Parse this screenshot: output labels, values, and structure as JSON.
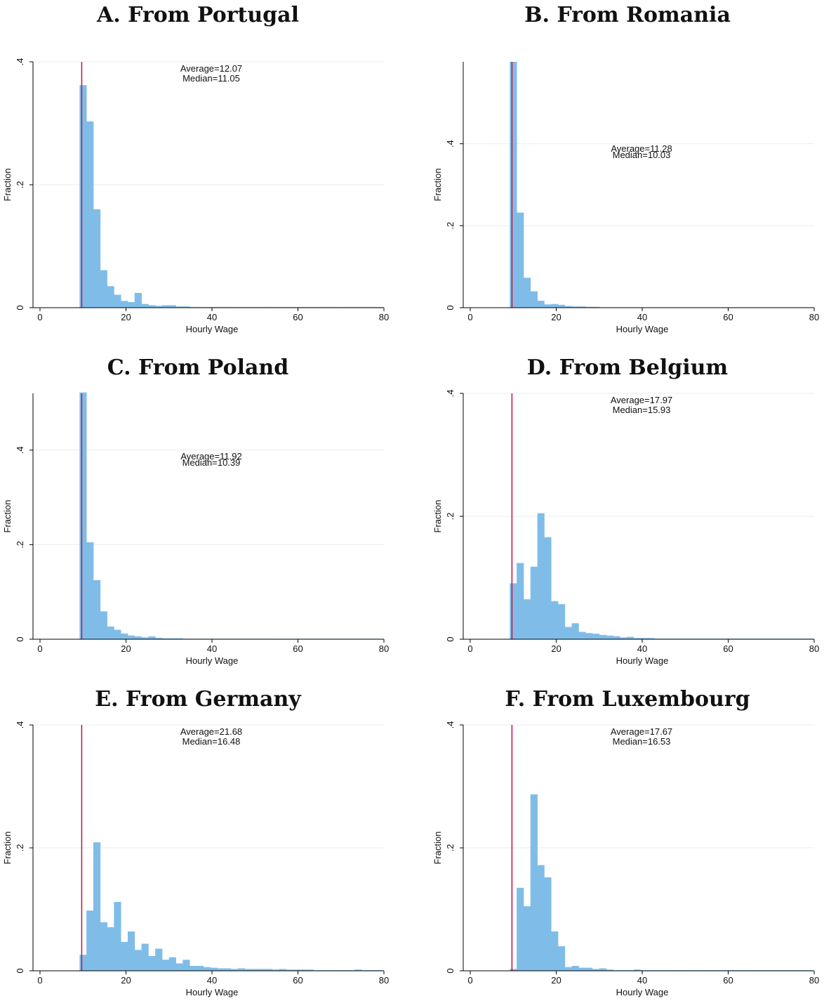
{
  "colors": {
    "bar": "#7fbde8",
    "min_wage_line": "#c8103e",
    "grid": "#e7eef3",
    "axis": "#000000"
  },
  "chart_data": [
    {
      "type": "bar",
      "title": "A. From Portugal",
      "xlabel": "Hourly Wage",
      "ylabel": "Fraction",
      "xlim": [
        0,
        80
      ],
      "ylim": [
        0,
        0.4
      ],
      "xticks": [
        0,
        20,
        40,
        60,
        80
      ],
      "xtick_labels": [
        "0",
        "20",
        "40",
        "60",
        "80"
      ],
      "yticks": [
        0,
        0.2,
        0.4
      ],
      "ytick_labels": [
        "0",
        ".2",
        ".4"
      ],
      "grid": true,
      "bin_start": 9.2,
      "bin_width": 1.6,
      "values": [
        0.362,
        0.303,
        0.16,
        0.061,
        0.035,
        0.021,
        0.011,
        0.009,
        0.024,
        0.006,
        0.004,
        0.003,
        0.004,
        0.004,
        0.002,
        0.002,
        0.001,
        0.001,
        0.001,
        0.001,
        0.001,
        0.001,
        0.001,
        0.001,
        0.001,
        0.001,
        0.001,
        0.001,
        0.001,
        0.001,
        0.001,
        0.001,
        0.001,
        0.001,
        0.001,
        0.001,
        0.001,
        0.001,
        0.001,
        0.001,
        0.001,
        0.001,
        0.001,
        0.001
      ],
      "min_wage": 9.7,
      "annotations": [
        "Average=12.07",
        "Median=11.05"
      ]
    },
    {
      "type": "bar",
      "title": "B. From Romania",
      "xlabel": "Hourly Wage",
      "ylabel": "Fraction",
      "xlim": [
        0,
        80
      ],
      "ylim": [
        0,
        0.6
      ],
      "xticks": [
        0,
        20,
        40,
        60,
        80
      ],
      "xtick_labels": [
        "0",
        "20",
        "40",
        "60",
        "80"
      ],
      "yticks": [
        0,
        0.2,
        0.4
      ],
      "ytick_labels": [
        "0",
        ".2",
        ".4"
      ],
      "grid": true,
      "bin_start": 9.2,
      "bin_width": 1.6,
      "values": [
        0.6,
        0.232,
        0.073,
        0.04,
        0.017,
        0.008,
        0.009,
        0.007,
        0.004,
        0.003,
        0.003,
        0.002,
        0.002,
        0.001,
        0.001,
        0.001,
        0.001,
        0.001,
        0.001,
        0.001,
        0.001,
        0.001,
        0.001,
        0.001,
        0.001,
        0.001,
        0.001,
        0.001,
        0.001,
        0.001,
        0.001,
        0.001,
        0.001,
        0.001,
        0.001,
        0.001,
        0.001,
        0.001,
        0.001,
        0.001,
        0.001,
        0.001,
        0.001,
        0.001
      ],
      "min_wage": 9.7,
      "annotations": [
        "Average=11.28",
        "Median=10.03"
      ]
    },
    {
      "type": "bar",
      "title": "C. From Poland",
      "xlabel": "Hourly Wage",
      "ylabel": "Fraction",
      "xlim": [
        0,
        80
      ],
      "ylim": [
        0,
        0.52
      ],
      "xticks": [
        0,
        20,
        40,
        60,
        80
      ],
      "xtick_labels": [
        "0",
        "20",
        "40",
        "60",
        "80"
      ],
      "yticks": [
        0,
        0.2,
        0.4
      ],
      "ytick_labels": [
        "0",
        ".2",
        ".4"
      ],
      "grid": true,
      "bin_start": 9.2,
      "bin_width": 1.6,
      "values": [
        0.522,
        0.205,
        0.125,
        0.059,
        0.027,
        0.02,
        0.012,
        0.008,
        0.006,
        0.004,
        0.006,
        0.003,
        0.002,
        0.002,
        0.002,
        0.001,
        0.001,
        0.001,
        0.001,
        0.001,
        0.001,
        0.001,
        0.001,
        0.001,
        0.001,
        0.001,
        0.001,
        0.001,
        0.001,
        0.001,
        0.001,
        0.001,
        0.001,
        0.001,
        0.001,
        0.001,
        0.001,
        0.001,
        0.001,
        0.001,
        0.001,
        0.001,
        0.001,
        0.001
      ],
      "min_wage": 9.7,
      "annotations": [
        "Average=11.92",
        "Median=10.39"
      ]
    },
    {
      "type": "bar",
      "title": "D. From Belgium",
      "xlabel": "Hourly Wage",
      "ylabel": "Fraction",
      "xlim": [
        0,
        80
      ],
      "ylim": [
        0,
        0.4
      ],
      "xticks": [
        0,
        20,
        40,
        60,
        80
      ],
      "xtick_labels": [
        "0",
        "20",
        "40",
        "60",
        "80"
      ],
      "yticks": [
        0,
        0.2,
        0.4
      ],
      "ytick_labels": [
        "0",
        ".2",
        ".4"
      ],
      "grid": true,
      "bin_start": 9.2,
      "bin_width": 1.6,
      "values": [
        0.091,
        0.124,
        0.065,
        0.118,
        0.205,
        0.166,
        0.062,
        0.057,
        0.02,
        0.026,
        0.012,
        0.01,
        0.009,
        0.007,
        0.006,
        0.005,
        0.003,
        0.004,
        0.002,
        0.002,
        0.002,
        0.001,
        0.001,
        0.001,
        0.001,
        0.001,
        0.001,
        0.001,
        0.001,
        0.001,
        0.001,
        0.001,
        0.001,
        0.001,
        0.001,
        0.001,
        0.001,
        0.001,
        0.001,
        0.001,
        0.001,
        0.001,
        0.001,
        0.001
      ],
      "min_wage": 9.7,
      "annotations": [
        "Average=17.97",
        "Median=15.93"
      ]
    },
    {
      "type": "bar",
      "title": "E. From Germany",
      "xlabel": "Hourly Wage",
      "ylabel": "Fraction",
      "xlim": [
        0,
        80
      ],
      "ylim": [
        0,
        0.4
      ],
      "xticks": [
        0,
        20,
        40,
        60,
        80
      ],
      "xtick_labels": [
        "0",
        "20",
        "40",
        "60",
        "80"
      ],
      "yticks": [
        0,
        0.2,
        0.4
      ],
      "ytick_labels": [
        "0",
        ".2",
        ".4"
      ],
      "grid": true,
      "bin_start": 9.2,
      "bin_width": 1.6,
      "values": [
        0.026,
        0.098,
        0.209,
        0.079,
        0.071,
        0.112,
        0.047,
        0.064,
        0.034,
        0.044,
        0.024,
        0.036,
        0.018,
        0.022,
        0.012,
        0.018,
        0.008,
        0.008,
        0.006,
        0.005,
        0.004,
        0.004,
        0.003,
        0.004,
        0.003,
        0.003,
        0.003,
        0.003,
        0.002,
        0.003,
        0.002,
        0.002,
        0.002,
        0.002,
        0.001,
        0.001,
        0.001,
        0.001,
        0.001,
        0.001,
        0.002,
        0.001,
        0.001,
        0.001
      ],
      "min_wage": 9.7,
      "annotations": [
        "Average=21.68",
        "Median=16.48"
      ]
    },
    {
      "type": "bar",
      "title": "F. From Luxembourg",
      "xlabel": "Hourly Wage",
      "ylabel": "Fraction",
      "xlim": [
        0,
        80
      ],
      "ylim": [
        0,
        0.4
      ],
      "xticks": [
        0,
        20,
        40,
        60,
        80
      ],
      "xtick_labels": [
        "0",
        "20",
        "40",
        "60",
        "80"
      ],
      "yticks": [
        0,
        0.2,
        0.4
      ],
      "ytick_labels": [
        "0",
        ".2",
        ".4"
      ],
      "grid": true,
      "bin_start": 9.2,
      "bin_width": 1.6,
      "values": [
        0.003,
        0.135,
        0.105,
        0.287,
        0.172,
        0.152,
        0.064,
        0.04,
        0.006,
        0.008,
        0.005,
        0.005,
        0.003,
        0.004,
        0.002,
        0.001,
        0.001,
        0.001,
        0.002,
        0.001,
        0.001,
        0.001,
        0.001,
        0.001,
        0.001,
        0.001,
        0.001,
        0.001,
        0.001,
        0.001,
        0.001,
        0.001,
        0.001,
        0.001,
        0.001,
        0.001,
        0.001,
        0.001,
        0.001,
        0.001,
        0.001,
        0.001,
        0.001,
        0.001
      ],
      "min_wage": 9.7,
      "annotations": [
        "Average=17.67",
        "Median=16.53"
      ]
    }
  ]
}
